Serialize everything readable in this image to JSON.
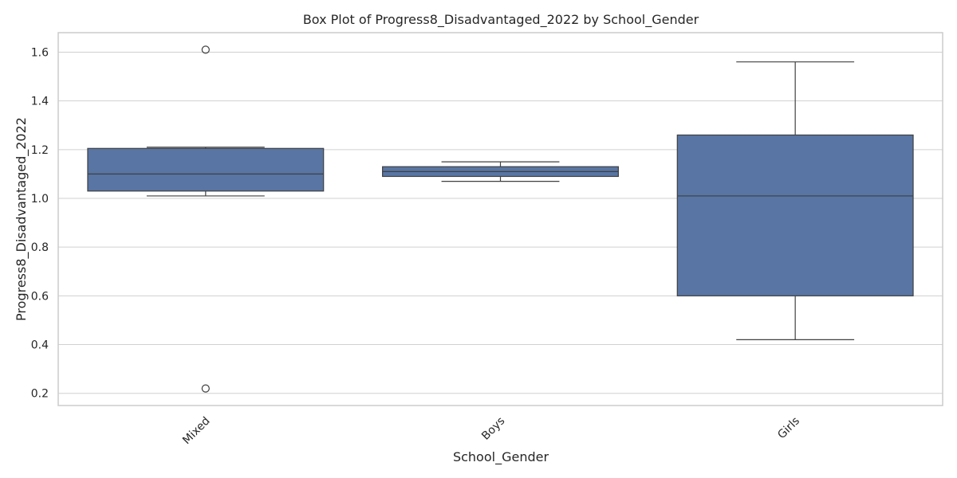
{
  "chart_data": {
    "type": "box",
    "title": "Box Plot of Progress8_Disadvantaged_2022 by School_Gender",
    "xlabel": "School_Gender",
    "ylabel": "Progress8_Disadvantaged_2022",
    "categories": [
      "Mixed",
      "Boys",
      "Girls"
    ],
    "ylim": [
      0.15,
      1.68
    ],
    "yticks": [
      0.2,
      0.4,
      0.6,
      0.8,
      1.0,
      1.2,
      1.4,
      1.6
    ],
    "ytick_labels": [
      "0.2",
      "0.4",
      "0.6",
      "0.8",
      "1.0",
      "1.2",
      "1.4",
      "1.6"
    ],
    "grid": true,
    "box_color": "#5875a4",
    "line_color": "#404040",
    "boxes": [
      {
        "category": "Mixed",
        "whisker_low": 1.01,
        "q1": 1.03,
        "median": 1.1,
        "q3": 1.205,
        "whisker_high": 1.21,
        "outliers": [
          1.61,
          0.22
        ]
      },
      {
        "category": "Boys",
        "whisker_low": 1.07,
        "q1": 1.09,
        "median": 1.11,
        "q3": 1.13,
        "whisker_high": 1.15,
        "outliers": []
      },
      {
        "category": "Girls",
        "whisker_low": 0.42,
        "q1": 0.6,
        "median": 1.01,
        "q3": 1.26,
        "whisker_high": 1.56,
        "outliers": []
      }
    ]
  }
}
